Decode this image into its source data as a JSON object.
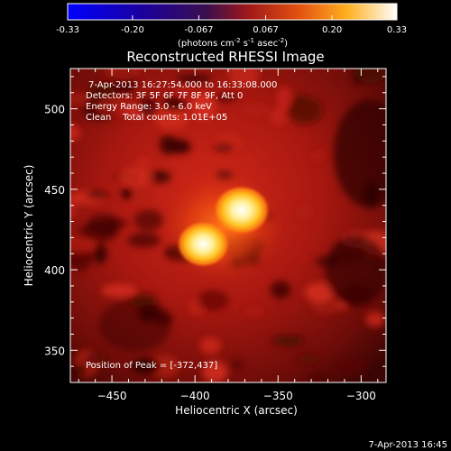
{
  "colorbar": {
    "ticks": [
      "-0.33",
      "-0.20",
      "-0.067",
      "0.067",
      "0.20",
      "0.33"
    ],
    "unit_base": "(photons cm",
    "unit_exp1": "-2",
    "unit_mid": " s",
    "unit_exp2": "-1",
    "unit_tail": " asec",
    "unit_exp3": "-2",
    "unit_close": ")"
  },
  "chart_data": {
    "type": "heatmap",
    "title": "Reconstructed RHESSI Image",
    "xlabel": "Heliocentric X (arcsec)",
    "ylabel": "Heliocentric Y (arcsec)",
    "xlim": [
      -475,
      -285
    ],
    "ylim": [
      330,
      525
    ],
    "x_ticks": [
      -450,
      -400,
      -350,
      -300
    ],
    "x_tick_labels": [
      "−450",
      "−400",
      "−350",
      "−300"
    ],
    "y_ticks": [
      350,
      400,
      450,
      500
    ],
    "y_tick_labels": [
      "350",
      "400",
      "450",
      "500"
    ],
    "value_range": [
      -0.33,
      0.33
    ],
    "colormap": "hot",
    "sources": [
      {
        "x": -372,
        "y": 437,
        "intensity": 0.33
      },
      {
        "x": -395,
        "y": 416,
        "intensity": 0.31
      }
    ],
    "annotations": {
      "time": "7-Apr-2013 16:27:54.000 to 16:33:08.000",
      "detectors": "Detectors: 3F 5F 6F 7F 8F 9F, Att 0",
      "energy": "Energy Range: 3.0 - 6.0 keV",
      "clean": "Clean    Total counts: 1.01E+05",
      "peak": "Position of Peak = [-372,437]"
    }
  },
  "footer": {
    "timestamp": "7-Apr-2013 16:45"
  }
}
